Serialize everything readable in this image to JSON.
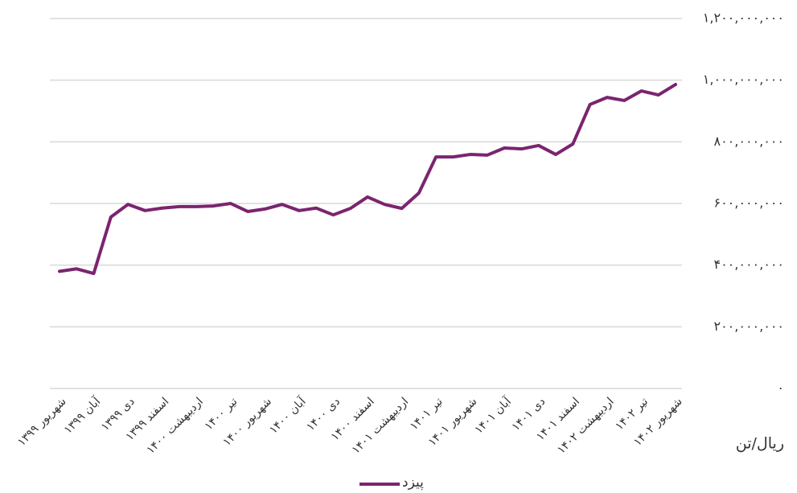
{
  "chart_data": {
    "type": "line",
    "categories": [
      "شهریور ۱۳۹۹",
      null,
      "آبان ۱۳۹۹",
      null,
      "دی ۱۳۹۹",
      null,
      "اسفند ۱۳۹۹",
      null,
      "اردیبهشت ۱۴۰۰",
      null,
      "تیر ۱۴۰۰",
      null,
      "شهریور ۱۴۰۰",
      null,
      "آبان ۱۴۰۰",
      null,
      "دی ۱۴۰۰",
      null,
      "اسفند ۱۴۰۰",
      null,
      "اردیبهشت ۱۴۰۱",
      null,
      "تیر ۱۴۰۱",
      null,
      "شهریور ۱۴۰۱",
      null,
      "آبان ۱۴۰۱",
      null,
      "دی ۱۴۰۱",
      null,
      "اسفند ۱۴۰۱",
      null,
      "اردیبهشت ۱۴۰۲",
      null,
      "تیر ۱۴۰۲",
      null,
      "شهریور ۱۴۰۲"
    ],
    "series": [
      {
        "name": "پیزد",
        "color": "#7b2470",
        "values": [
          380000000,
          388000000,
          373000000,
          556000000,
          597000000,
          577000000,
          585000000,
          590000000,
          590000000,
          592000000,
          600000000,
          574000000,
          582000000,
          597000000,
          577000000,
          585000000,
          563000000,
          584000000,
          621000000,
          597000000,
          584000000,
          634000000,
          751000000,
          751000000,
          759000000,
          757000000,
          780000000,
          777000000,
          788000000,
          759000000,
          793000000,
          921000000,
          944000000,
          934000000,
          965000000,
          952000000,
          986000000
        ]
      }
    ],
    "y_axis_label": "ریال/تن",
    "ylim": [
      0,
      1200000000
    ],
    "yticks": [
      {
        "value": 0,
        "label": "۰"
      },
      {
        "value": 200000000,
        "label": "۲۰۰,۰۰۰,۰۰۰"
      },
      {
        "value": 400000000,
        "label": "۴۰۰,۰۰۰,۰۰۰"
      },
      {
        "value": 600000000,
        "label": "۶۰۰,۰۰۰,۰۰۰"
      },
      {
        "value": 800000000,
        "label": "۸۰۰,۰۰۰,۰۰۰"
      },
      {
        "value": 1000000000,
        "label": "۱,۰۰۰,۰۰۰,۰۰۰"
      },
      {
        "value": 1200000000,
        "label": "۱,۲۰۰,۰۰۰,۰۰۰"
      }
    ],
    "grid": true,
    "legend": "bottom"
  }
}
